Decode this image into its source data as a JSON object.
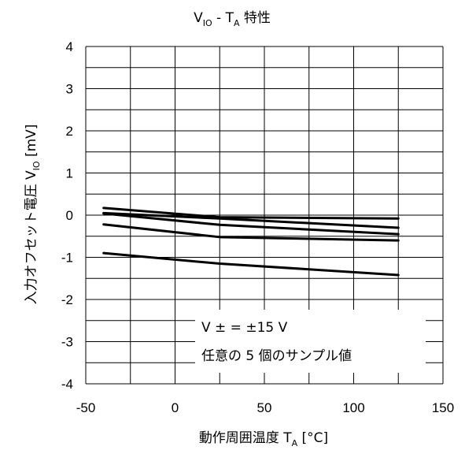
{
  "chart_data": {
    "type": "line",
    "title": {
      "main": "V",
      "sub": "IO",
      "rest": " - T",
      "sub2": "A",
      "tail": " 特性"
    },
    "xlabel": {
      "main": "動作周囲温度 T",
      "sub": "A",
      "tail": " [°C]"
    },
    "ylabel": {
      "main": "入力オフセット電圧 V",
      "sub": "IO",
      "tail": " [mV]"
    },
    "xlim": [
      -50,
      150
    ],
    "ylim": [
      -4,
      4
    ],
    "xticks": [
      "-50",
      "0",
      "50",
      "100",
      "150"
    ],
    "yticks": [
      "4",
      "3",
      "2",
      "1",
      "0",
      "-1",
      "-2",
      "-3",
      "-4"
    ],
    "x_grid_step": 25,
    "y_grid_step": 0.5,
    "grid": true,
    "x": [
      -40,
      25,
      125
    ],
    "series": [
      {
        "values": [
          0.17,
          -0.05,
          -0.08
        ]
      },
      {
        "values": [
          0.05,
          -0.08,
          -0.3
        ]
      },
      {
        "values": [
          0.04,
          -0.23,
          -0.45
        ]
      },
      {
        "values": [
          -0.22,
          -0.52,
          -0.6
        ]
      },
      {
        "values": [
          -0.9,
          -1.15,
          -1.42
        ]
      }
    ],
    "legend": {
      "position": "bottom-right",
      "line1": "V ± = ±15 V",
      "line2": "任意の 5 個のサンプル値"
    }
  }
}
